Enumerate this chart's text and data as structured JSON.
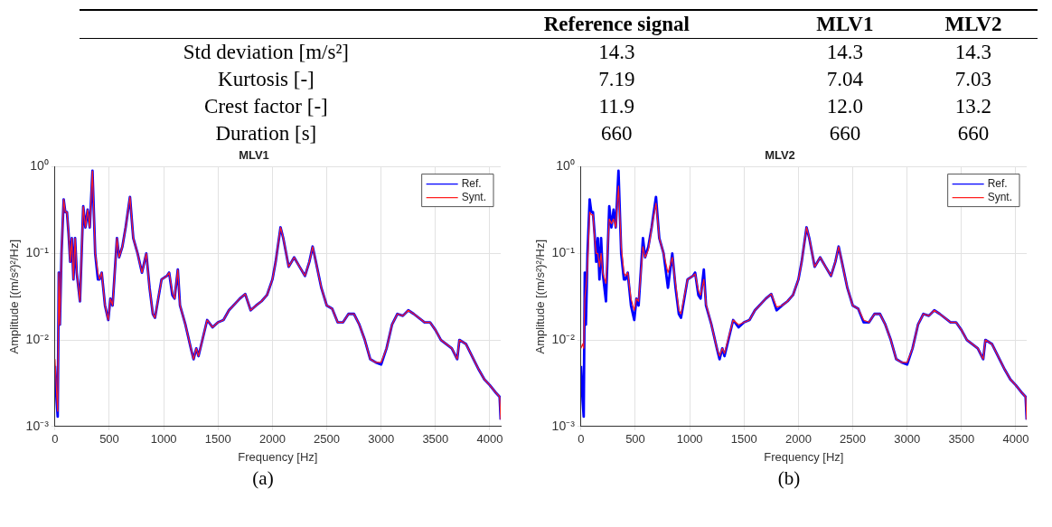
{
  "chart_data": [
    {
      "type": "other",
      "categories": [
        "Reference signal",
        "MLV1",
        "MLV2"
      ],
      "y_categories": [
        "Std deviation [m/s²]",
        "Kurtosis [-]",
        "Crest factor [-]",
        "Duration [s]"
      ],
      "cell_labels": [
        [
          "14.3",
          "14.3",
          "14.3"
        ],
        [
          "7.19",
          "7.04",
          "7.03"
        ],
        [
          "11.9",
          "12.0",
          "13.2"
        ],
        [
          "660",
          "660",
          "660"
        ]
      ]
    },
    {
      "type": "line",
      "title": "MLV1",
      "xlabel": "Frequency [Hz]",
      "ylabel": "Amplitude [(m/s²)²/Hz]",
      "annotations": [
        "(a)"
      ],
      "x": [
        0,
        15,
        25,
        35,
        45,
        60,
        80,
        95,
        110,
        125,
        140,
        155,
        170,
        185,
        200,
        230,
        260,
        280,
        300,
        320,
        345,
        370,
        395,
        410,
        430,
        460,
        490,
        510,
        530,
        570,
        590,
        620,
        650,
        690,
        720,
        760,
        800,
        840,
        870,
        900,
        920,
        980,
        1030,
        1050,
        1080,
        1100,
        1130,
        1150,
        1200,
        1250,
        1275,
        1300,
        1320,
        1400,
        1450,
        1500,
        1550,
        1600,
        1700,
        1750,
        1800,
        1850,
        1900,
        1950,
        2000,
        2030,
        2075,
        2100,
        2150,
        2200,
        2250,
        2300,
        2340,
        2370,
        2400,
        2450,
        2500,
        2550,
        2600,
        2650,
        2700,
        2750,
        2800,
        2850,
        2900,
        2950,
        3000,
        3050,
        3100,
        3150,
        3200,
        3250,
        3300,
        3400,
        3450,
        3500,
        3550,
        3650,
        3700,
        3720,
        3780,
        3850,
        3900,
        3950,
        4000,
        4050,
        4090,
        4100
      ],
      "series": [
        {
          "name": "Ref.",
          "color": "#0000ff",
          "values": [
            0.005,
            0.002,
            0.0013,
            0.06,
            0.015,
            0.1,
            0.42,
            0.3,
            0.3,
            0.17,
            0.08,
            0.15,
            0.05,
            0.15,
            0.06,
            0.028,
            0.35,
            0.2,
            0.32,
            0.2,
            0.9,
            0.1,
            0.05,
            0.05,
            0.06,
            0.025,
            0.017,
            0.03,
            0.025,
            0.15,
            0.09,
            0.12,
            0.2,
            0.45,
            0.15,
            0.1,
            0.06,
            0.1,
            0.04,
            0.02,
            0.018,
            0.05,
            0.055,
            0.06,
            0.033,
            0.03,
            0.065,
            0.025,
            0.015,
            0.008,
            0.006,
            0.008,
            0.0065,
            0.017,
            0.014,
            0.016,
            0.017,
            0.022,
            0.03,
            0.034,
            0.022,
            0.025,
            0.028,
            0.033,
            0.05,
            0.08,
            0.2,
            0.15,
            0.07,
            0.09,
            0.07,
            0.055,
            0.08,
            0.12,
            0.08,
            0.04,
            0.025,
            0.023,
            0.016,
            0.016,
            0.02,
            0.02,
            0.015,
            0.01,
            0.006,
            0.0055,
            0.0052,
            0.008,
            0.015,
            0.02,
            0.019,
            0.022,
            0.02,
            0.016,
            0.016,
            0.013,
            0.01,
            0.008,
            0.006,
            0.01,
            0.009,
            0.006,
            0.0045,
            0.0035,
            0.003,
            0.0025,
            0.0022,
            0.0012
          ]
        },
        {
          "name": "Synt.",
          "color": "#ff2020",
          "values": [
            0.006,
            0.0025,
            0.0015,
            0.06,
            0.015,
            0.1,
            0.42,
            0.3,
            0.3,
            0.17,
            0.08,
            0.15,
            0.05,
            0.15,
            0.06,
            0.028,
            0.35,
            0.2,
            0.32,
            0.2,
            0.9,
            0.1,
            0.06,
            0.05,
            0.06,
            0.025,
            0.017,
            0.03,
            0.025,
            0.15,
            0.09,
            0.12,
            0.2,
            0.45,
            0.15,
            0.1,
            0.06,
            0.1,
            0.04,
            0.02,
            0.018,
            0.05,
            0.055,
            0.06,
            0.035,
            0.03,
            0.065,
            0.025,
            0.015,
            0.008,
            0.006,
            0.008,
            0.0065,
            0.017,
            0.014,
            0.016,
            0.017,
            0.022,
            0.03,
            0.034,
            0.022,
            0.025,
            0.028,
            0.033,
            0.05,
            0.08,
            0.2,
            0.15,
            0.07,
            0.09,
            0.07,
            0.055,
            0.08,
            0.12,
            0.08,
            0.04,
            0.025,
            0.023,
            0.016,
            0.016,
            0.02,
            0.02,
            0.015,
            0.01,
            0.006,
            0.0055,
            0.0055,
            0.008,
            0.015,
            0.02,
            0.019,
            0.022,
            0.02,
            0.016,
            0.016,
            0.013,
            0.01,
            0.008,
            0.006,
            0.01,
            0.009,
            0.006,
            0.0045,
            0.0035,
            0.003,
            0.0025,
            0.0022,
            0.0012
          ]
        }
      ],
      "xlim": [
        0,
        4100
      ],
      "xticks": [
        0,
        500,
        1000,
        1500,
        2000,
        2500,
        3000,
        3500,
        4000
      ],
      "ylim": [
        0.001,
        1
      ],
      "yticks": [
        {
          "value": 0.001,
          "label": "10⁻³"
        },
        {
          "value": 0.01,
          "label": "10⁻²"
        },
        {
          "value": 0.1,
          "label": "10⁻¹"
        },
        {
          "value": 1,
          "label": "10⁰"
        }
      ],
      "log": "y",
      "grid": true,
      "legend": "top right",
      "line_style": "solid",
      "marker": "none"
    },
    {
      "type": "line",
      "title": "MLV2",
      "xlabel": "Frequency [Hz]",
      "ylabel": "Amplitude [(m/s²)²/Hz]",
      "annotations": [
        "(b)"
      ],
      "x": [
        0,
        15,
        25,
        35,
        45,
        60,
        80,
        95,
        110,
        125,
        140,
        155,
        170,
        185,
        200,
        230,
        260,
        280,
        300,
        320,
        345,
        370,
        395,
        410,
        430,
        460,
        490,
        510,
        530,
        570,
        590,
        620,
        650,
        690,
        720,
        760,
        800,
        840,
        870,
        900,
        920,
        980,
        1030,
        1050,
        1080,
        1100,
        1130,
        1150,
        1200,
        1250,
        1275,
        1300,
        1320,
        1400,
        1450,
        1500,
        1550,
        1600,
        1700,
        1750,
        1800,
        1850,
        1900,
        1950,
        2000,
        2030,
        2075,
        2100,
        2150,
        2200,
        2250,
        2300,
        2340,
        2370,
        2400,
        2450,
        2500,
        2550,
        2600,
        2650,
        2700,
        2750,
        2800,
        2850,
        2900,
        2950,
        3000,
        3050,
        3100,
        3150,
        3200,
        3250,
        3300,
        3400,
        3450,
        3500,
        3550,
        3650,
        3700,
        3720,
        3780,
        3850,
        3900,
        3950,
        4000,
        4050,
        4090,
        4100
      ],
      "series": [
        {
          "name": "Ref.",
          "color": "#0000ff",
          "values": [
            0.005,
            0.002,
            0.0013,
            0.06,
            0.015,
            0.1,
            0.42,
            0.3,
            0.3,
            0.17,
            0.08,
            0.15,
            0.05,
            0.15,
            0.06,
            0.028,
            0.35,
            0.2,
            0.32,
            0.2,
            0.9,
            0.1,
            0.05,
            0.05,
            0.06,
            0.025,
            0.017,
            0.03,
            0.025,
            0.15,
            0.09,
            0.12,
            0.2,
            0.45,
            0.15,
            0.1,
            0.04,
            0.1,
            0.04,
            0.02,
            0.018,
            0.05,
            0.055,
            0.06,
            0.033,
            0.03,
            0.065,
            0.025,
            0.015,
            0.008,
            0.006,
            0.008,
            0.0065,
            0.017,
            0.014,
            0.016,
            0.017,
            0.022,
            0.03,
            0.034,
            0.022,
            0.025,
            0.028,
            0.033,
            0.05,
            0.08,
            0.2,
            0.15,
            0.07,
            0.09,
            0.07,
            0.055,
            0.08,
            0.12,
            0.08,
            0.04,
            0.025,
            0.023,
            0.016,
            0.016,
            0.02,
            0.02,
            0.015,
            0.01,
            0.006,
            0.0055,
            0.0052,
            0.008,
            0.015,
            0.02,
            0.019,
            0.022,
            0.02,
            0.016,
            0.016,
            0.013,
            0.01,
            0.008,
            0.006,
            0.01,
            0.009,
            0.006,
            0.0045,
            0.0035,
            0.003,
            0.0025,
            0.0022,
            0.0012
          ]
        },
        {
          "name": "Synt.",
          "color": "#ff2020",
          "values": [
            0.008,
            0.009,
            0.008,
            0.03,
            0.04,
            0.07,
            0.3,
            0.28,
            0.28,
            0.15,
            0.1,
            0.1,
            0.07,
            0.1,
            0.06,
            0.045,
            0.25,
            0.22,
            0.25,
            0.2,
            0.6,
            0.12,
            0.06,
            0.055,
            0.06,
            0.03,
            0.022,
            0.03,
            0.028,
            0.12,
            0.09,
            0.11,
            0.2,
            0.38,
            0.15,
            0.1,
            0.06,
            0.09,
            0.045,
            0.022,
            0.02,
            0.05,
            0.055,
            0.058,
            0.037,
            0.033,
            0.05,
            0.026,
            0.015,
            0.008,
            0.0065,
            0.008,
            0.007,
            0.017,
            0.015,
            0.016,
            0.017,
            0.022,
            0.03,
            0.034,
            0.024,
            0.025,
            0.028,
            0.033,
            0.05,
            0.08,
            0.2,
            0.15,
            0.07,
            0.09,
            0.07,
            0.055,
            0.08,
            0.12,
            0.08,
            0.04,
            0.025,
            0.023,
            0.017,
            0.016,
            0.02,
            0.02,
            0.015,
            0.01,
            0.006,
            0.0055,
            0.0055,
            0.008,
            0.015,
            0.02,
            0.019,
            0.022,
            0.02,
            0.016,
            0.016,
            0.013,
            0.01,
            0.008,
            0.006,
            0.01,
            0.009,
            0.006,
            0.0045,
            0.0035,
            0.003,
            0.0025,
            0.0022,
            0.0012
          ]
        }
      ],
      "xlim": [
        0,
        4100
      ],
      "xticks": [
        0,
        500,
        1000,
        1500,
        2000,
        2500,
        3000,
        3500,
        4000
      ],
      "ylim": [
        0.001,
        1
      ],
      "yticks": [
        {
          "value": 0.001,
          "label": "10⁻³"
        },
        {
          "value": 0.01,
          "label": "10⁻²"
        },
        {
          "value": 0.1,
          "label": "10⁻¹"
        },
        {
          "value": 1,
          "label": "10⁰"
        }
      ],
      "log": "y",
      "grid": true,
      "legend": "top right",
      "line_style": "solid",
      "marker": "none"
    }
  ]
}
